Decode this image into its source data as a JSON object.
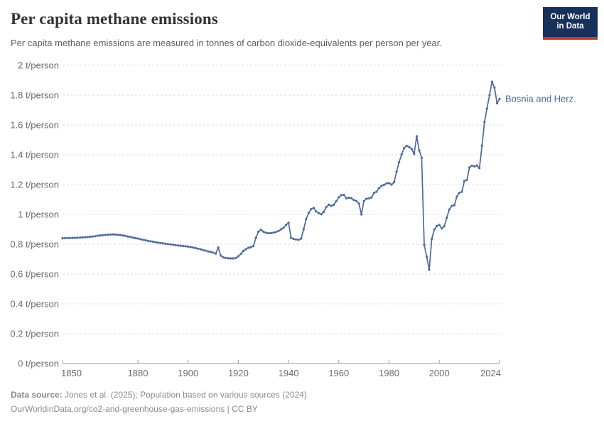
{
  "header": {
    "title": "Per capita methane emissions",
    "subtitle": "Per capita methane emissions are measured in tonnes of carbon dioxide-equivalents per person per year.",
    "logo_line1": "Our World",
    "logo_line2": "in Data"
  },
  "footer": {
    "datasource_label": "Data source:",
    "datasource_text": " Jones et al. (2025); Population based on various sources (2024)",
    "url_text": "OurWorldinData.org/co2-and-greenhouse-gas-emissions",
    "separator": " | ",
    "license_text": "CC BY"
  },
  "colors": {
    "series_line": "#4c6a9c",
    "grid": "#dcdcdc",
    "axis": "#9e9e9e",
    "tick_text": "#6b6b6b",
    "logo_navy": "#18305c",
    "logo_red": "#cf352c"
  },
  "chart_data": {
    "type": "line",
    "title": "Per capita methane emissions",
    "unit": "t/person",
    "grid": "horizontal-dashed",
    "legend_position": "end-of-line-label",
    "entity_label": "Bosnia and Herz.",
    "xlim": [
      1850,
      2024
    ],
    "ylim": [
      0,
      2
    ],
    "x_tick_years": [
      1850,
      1880,
      1900,
      1920,
      1940,
      1960,
      1980,
      2000,
      2024
    ],
    "x_tick_labels": [
      "1850",
      "1880",
      "1900",
      "1920",
      "1940",
      "1960",
      "1980",
      "2000",
      "2024"
    ],
    "y_tick_values": [
      0,
      0.2,
      0.4,
      0.6,
      0.8,
      1,
      1.2,
      1.4,
      1.6,
      1.8,
      2
    ],
    "y_tick_labels": [
      "0 t/person",
      "0.2 t/person",
      "0.4 t/person",
      "0.6 t/person",
      "0.8 t/person",
      "1 t/person",
      "1.2 t/person",
      "1.4 t/person",
      "1.6 t/person",
      "1.8 t/person",
      "2 t/person"
    ],
    "series": [
      {
        "name": "Bosnia and Herz.",
        "color": "#4c6a9c",
        "year_start": 1850,
        "year_step": 1,
        "values": [
          0.84,
          0.841,
          0.842,
          0.842,
          0.843,
          0.843,
          0.844,
          0.845,
          0.846,
          0.847,
          0.848,
          0.85,
          0.852,
          0.854,
          0.857,
          0.859,
          0.861,
          0.863,
          0.864,
          0.865,
          0.866,
          0.865,
          0.864,
          0.862,
          0.859,
          0.856,
          0.852,
          0.849,
          0.845,
          0.841,
          0.838,
          0.834,
          0.83,
          0.827,
          0.823,
          0.82,
          0.817,
          0.814,
          0.811,
          0.808,
          0.806,
          0.803,
          0.801,
          0.799,
          0.797,
          0.794,
          0.792,
          0.79,
          0.788,
          0.786,
          0.784,
          0.781,
          0.778,
          0.774,
          0.77,
          0.766,
          0.761,
          0.757,
          0.752,
          0.748,
          0.744,
          0.737,
          0.778,
          0.724,
          0.712,
          0.708,
          0.706,
          0.705,
          0.705,
          0.708,
          0.719,
          0.735,
          0.755,
          0.766,
          0.776,
          0.78,
          0.787,
          0.845,
          0.884,
          0.897,
          0.884,
          0.877,
          0.874,
          0.875,
          0.878,
          0.882,
          0.889,
          0.9,
          0.91,
          0.93,
          0.945,
          0.843,
          0.835,
          0.832,
          0.83,
          0.838,
          0.9,
          0.968,
          1.01,
          1.035,
          1.044,
          1.02,
          1.008,
          1.001,
          1.017,
          1.049,
          1.065,
          1.057,
          1.065,
          1.089,
          1.115,
          1.129,
          1.132,
          1.108,
          1.112,
          1.109,
          1.097,
          1.09,
          1.073,
          1.0,
          1.089,
          1.105,
          1.108,
          1.113,
          1.144,
          1.152,
          1.176,
          1.192,
          1.198,
          1.208,
          1.21,
          1.2,
          1.216,
          1.287,
          1.35,
          1.402,
          1.445,
          1.46,
          1.452,
          1.44,
          1.406,
          1.525,
          1.43,
          1.38,
          0.795,
          0.716,
          0.629,
          0.835,
          0.898,
          0.922,
          0.93,
          0.906,
          0.92,
          0.978,
          1.033,
          1.057,
          1.062,
          1.12,
          1.144,
          1.152,
          1.224,
          1.232,
          1.315,
          1.327,
          1.322,
          1.328,
          1.31,
          1.46,
          1.62,
          1.71,
          1.8,
          1.89,
          1.85,
          1.745,
          1.775
        ]
      }
    ]
  }
}
